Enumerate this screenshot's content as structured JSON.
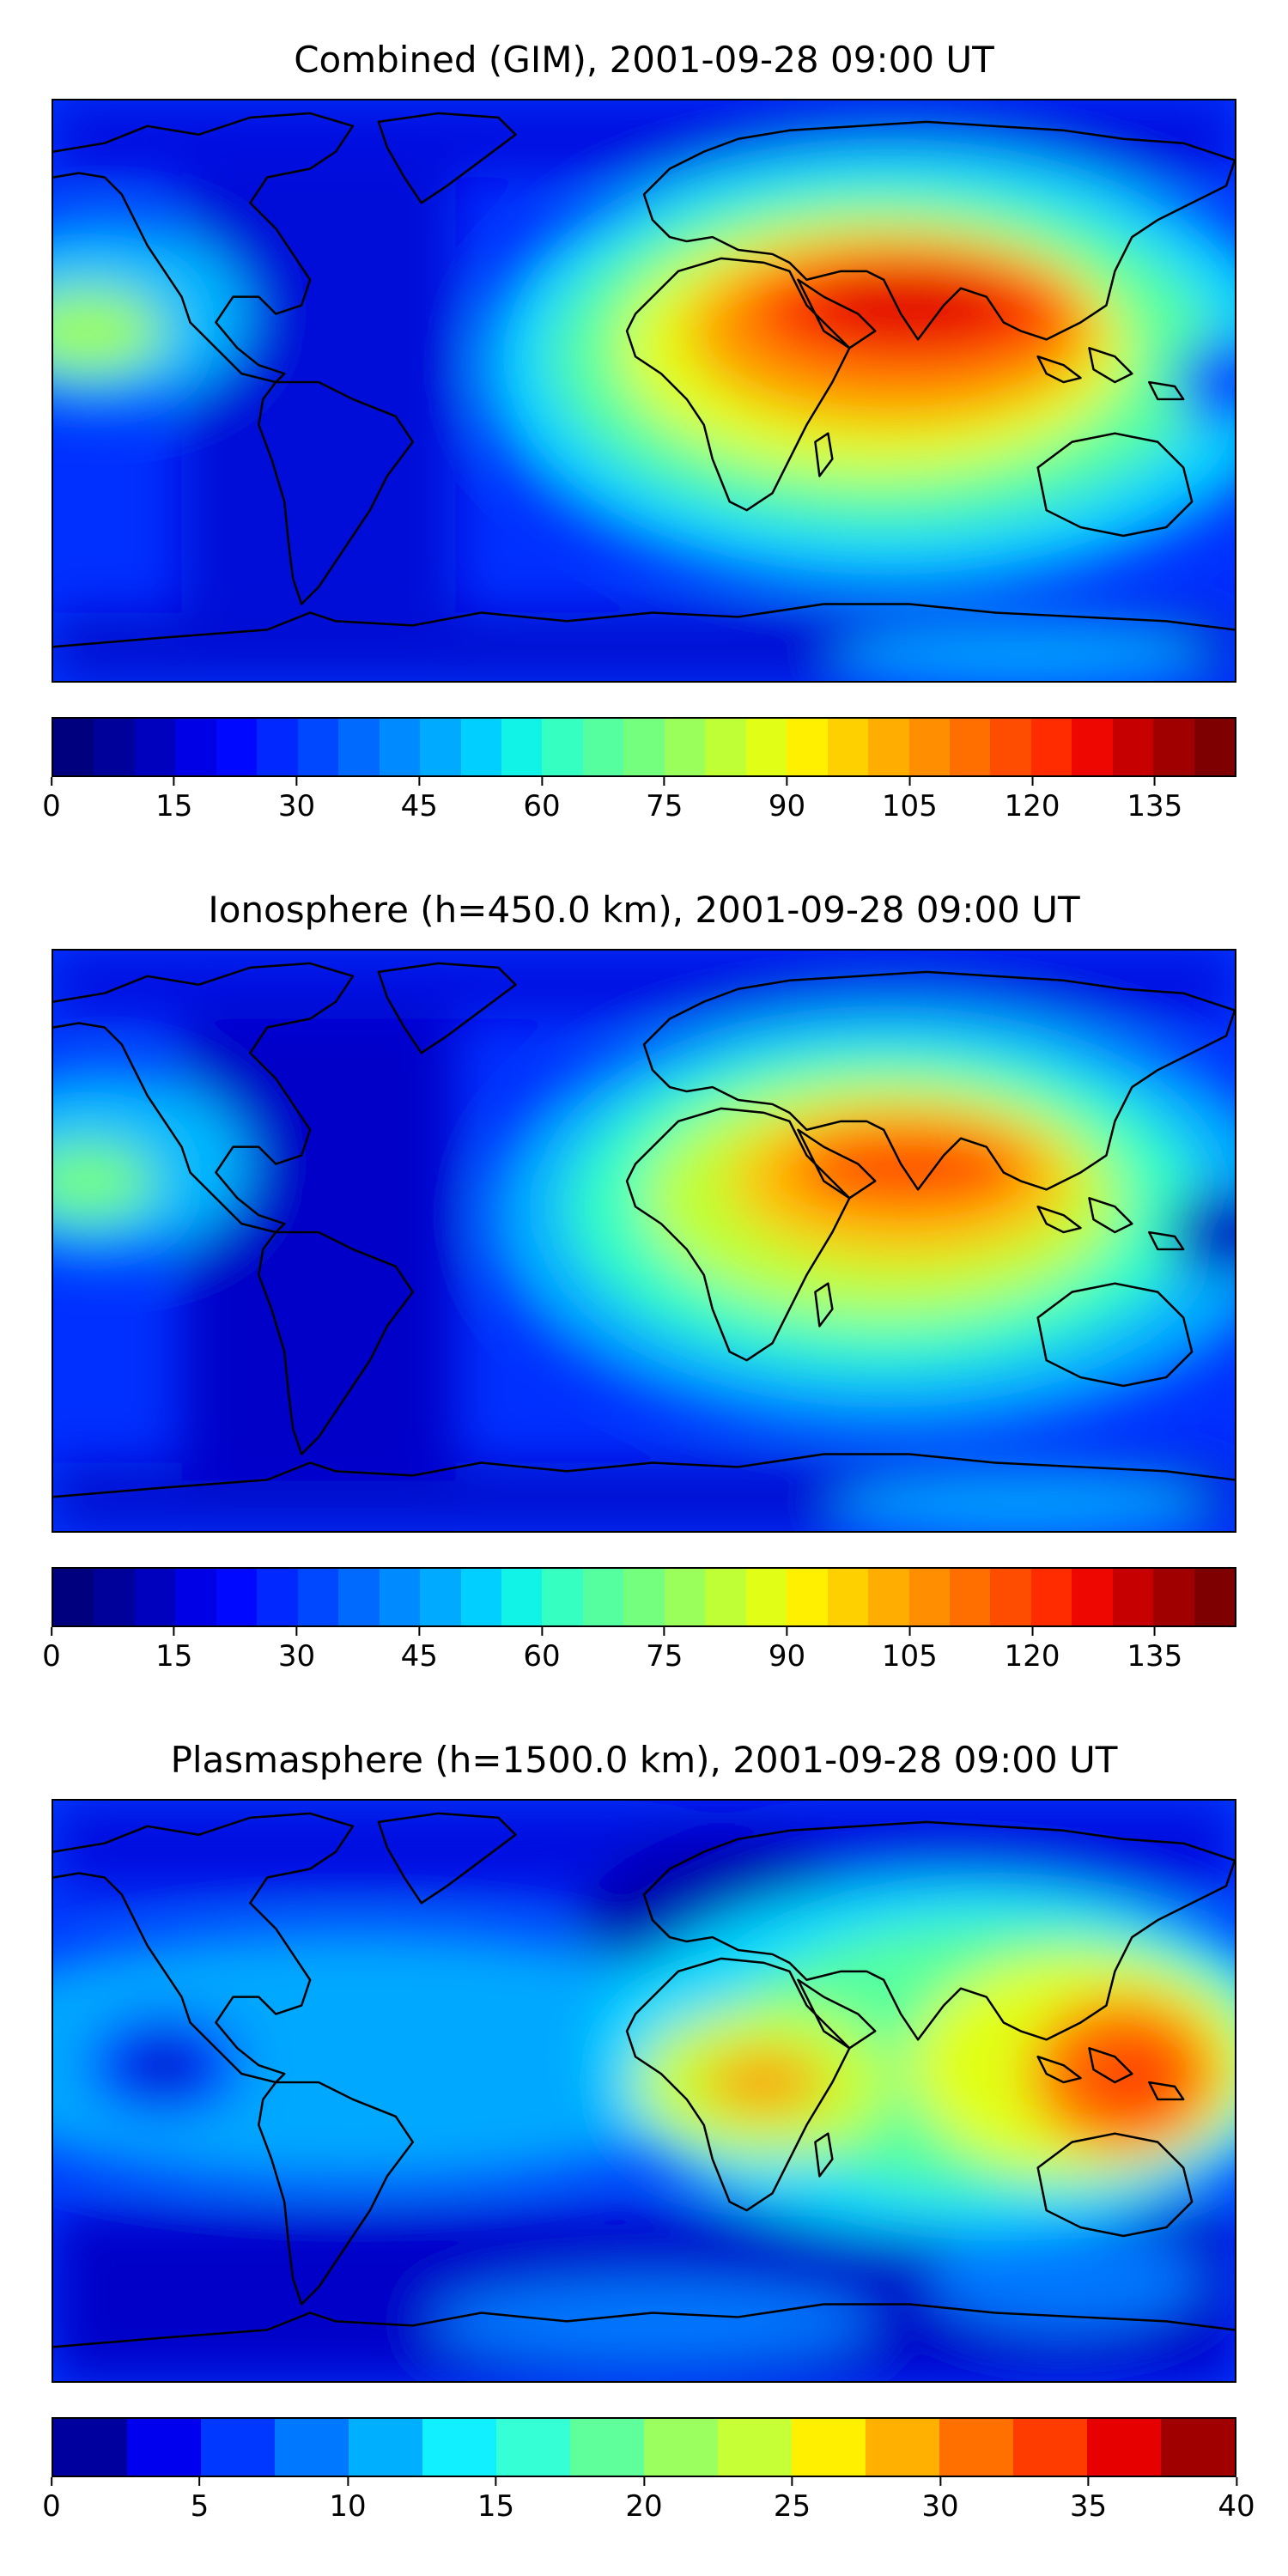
{
  "panels": [
    {
      "title": "Combined (GIM), 2001-09-28 09:00 UT",
      "colorbar": {
        "vmin": 0,
        "vmax": 145,
        "ticks": [
          "0",
          "15",
          "30",
          "45",
          "60",
          "75",
          "90",
          "105",
          "120",
          "135"
        ],
        "tick_values": [
          0,
          15,
          30,
          45,
          60,
          75,
          90,
          105,
          120,
          135
        ],
        "colors": [
          "#00007f",
          "#00009b",
          "#0000bf",
          "#0000e6",
          "#0008ff",
          "#0028ff",
          "#0048ff",
          "#006aff",
          "#008aff",
          "#00aaff",
          "#00cfff",
          "#10f3e6",
          "#35ffc1",
          "#55ff9f",
          "#75ff7f",
          "#9bff5b",
          "#bfff36",
          "#e1ff16",
          "#fff000",
          "#ffd000",
          "#ffae00",
          "#ff8f00",
          "#ff6f00",
          "#ff4d00",
          "#ff2c00",
          "#ed0700",
          "#c60000",
          "#a00000",
          "#7f0000"
        ]
      }
    },
    {
      "title": "Ionosphere  (h=450.0 km), 2001-09-28 09:00 UT",
      "colorbar": {
        "vmin": 0,
        "vmax": 145,
        "ticks": [
          "0",
          "15",
          "30",
          "45",
          "60",
          "75",
          "90",
          "105",
          "120",
          "135"
        ],
        "tick_values": [
          0,
          15,
          30,
          45,
          60,
          75,
          90,
          105,
          120,
          135
        ],
        "colors": [
          "#00007f",
          "#00009b",
          "#0000bf",
          "#0000e6",
          "#0008ff",
          "#0028ff",
          "#0048ff",
          "#006aff",
          "#008aff",
          "#00aaff",
          "#00cfff",
          "#10f3e6",
          "#35ffc1",
          "#55ff9f",
          "#75ff7f",
          "#9bff5b",
          "#bfff36",
          "#e1ff16",
          "#fff000",
          "#ffd000",
          "#ffae00",
          "#ff8f00",
          "#ff6f00",
          "#ff4d00",
          "#ff2c00",
          "#ed0700",
          "#c60000",
          "#a00000",
          "#7f0000"
        ]
      }
    },
    {
      "title": "Plasmasphere (h=1500.0 km), 2001-09-28 09:00 UT",
      "colorbar": {
        "vmin": 0,
        "vmax": 40,
        "ticks": [
          "0",
          "5",
          "10",
          "15",
          "20",
          "25",
          "30",
          "35",
          "40"
        ],
        "tick_values": [
          0,
          5,
          10,
          15,
          20,
          25,
          30,
          35,
          40
        ],
        "colors": [
          "#00009f",
          "#0000ee",
          "#0038ff",
          "#0078ff",
          "#00b0ff",
          "#10f0ff",
          "#35ffd4",
          "#5fff9b",
          "#9bff5f",
          "#c6ff36",
          "#fff000",
          "#ffb000",
          "#ff7000",
          "#ff3c00",
          "#e60000",
          "#a00000"
        ]
      }
    }
  ]
}
